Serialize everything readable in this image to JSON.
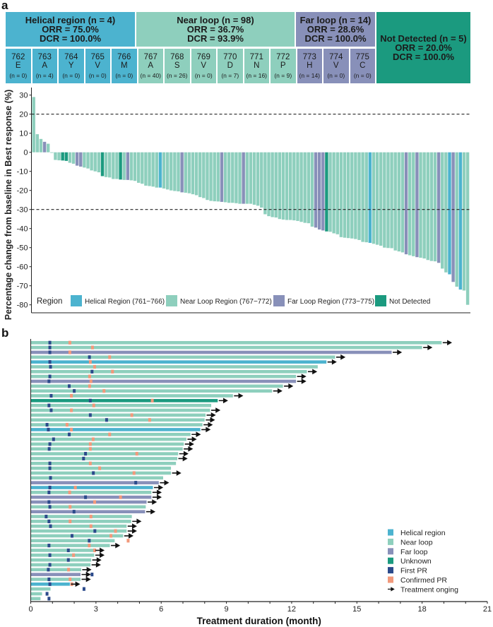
{
  "panel_labels": {
    "a": "a",
    "b": "b"
  },
  "colors": {
    "helical": "#4cb3cf",
    "near": "#8ecfbd",
    "far": "#8890b9",
    "not_detected": "#1b9a7f",
    "first_pr": "#2b4a8b",
    "confirmed_pr": "#f1997b",
    "arrow": "#111111"
  },
  "header": {
    "groups": [
      {
        "title": "Helical region (n = 4)",
        "orr": "ORR =  75.0%",
        "dcr": "DCR =  100.0%",
        "region": "helical"
      },
      {
        "title": "Near loop (n = 98)",
        "orr": "ORR =  36.7%",
        "dcr": "DCR =  93.9%",
        "region": "near"
      },
      {
        "title": "Far loop (n = 14)",
        "orr": "ORR = 28.6%",
        "dcr": "DCR = 100.0%",
        "region": "far"
      },
      {
        "title": "Not Detected (n = 5)",
        "orr": "ORR = 20.0%",
        "dcr": "DCR = 100.0%",
        "region": "not_detected"
      }
    ],
    "residues": [
      {
        "pos": "762",
        "aa": "E",
        "n": "(n = 0)",
        "region": "helical"
      },
      {
        "pos": "763",
        "aa": "A",
        "n": "(n = 4)",
        "region": "helical"
      },
      {
        "pos": "764",
        "aa": "Y",
        "n": "(n = 0)",
        "region": "helical"
      },
      {
        "pos": "765",
        "aa": "V",
        "n": "(n = 0)",
        "region": "helical"
      },
      {
        "pos": "766",
        "aa": "M",
        "n": "(n = 0)",
        "region": "helical"
      },
      {
        "pos": "767",
        "aa": "A",
        "n": "(n = 40)",
        "region": "near"
      },
      {
        "pos": "768",
        "aa": "S",
        "n": "(n = 26)",
        "region": "near"
      },
      {
        "pos": "769",
        "aa": "V",
        "n": "(n = 0)",
        "region": "near"
      },
      {
        "pos": "770",
        "aa": "D",
        "n": "(n = 7)",
        "region": "near"
      },
      {
        "pos": "771",
        "aa": "N",
        "n": "(n = 16)",
        "region": "near"
      },
      {
        "pos": "772",
        "aa": "P",
        "n": "(n = 9)",
        "region": "near"
      },
      {
        "pos": "773",
        "aa": "H",
        "n": "(n = 14)",
        "region": "far"
      },
      {
        "pos": "774",
        "aa": "V",
        "n": "(n = 0)",
        "region": "far"
      },
      {
        "pos": "775",
        "aa": "C",
        "n": "(n = 0)",
        "region": "far"
      }
    ]
  },
  "chart_data": [
    {
      "type": "bar",
      "subtype": "waterfall",
      "ylabel": "Percentage change from baseline in Best response (%)",
      "ylim": [
        -85,
        32
      ],
      "yticks": [
        30,
        20,
        10,
        0,
        -10,
        -20,
        -30,
        -40,
        -50,
        -60,
        -70,
        -80
      ],
      "reference_lines": [
        20,
        -30
      ],
      "legend": {
        "title": "Region",
        "placement": "bottom-left",
        "entries": [
          {
            "label": "Helical Region (761−766)",
            "region": "helical"
          },
          {
            "label": "Near Loop Region (767−772)",
            "region": "near"
          },
          {
            "label": "Far Loop Region (773−775)",
            "region": "far"
          },
          {
            "label": "Not Detected",
            "region": "not_detected"
          }
        ]
      },
      "values": [
        29,
        9.5,
        7,
        5.5,
        4.5,
        -0.3,
        -4,
        -4.2,
        -4.3,
        -4.5,
        -5.5,
        -6,
        -7,
        -7.5,
        -8,
        -8.5,
        -9.5,
        -10,
        -10.5,
        -12.5,
        -13,
        -13.2,
        -14,
        -14,
        -14.3,
        -14.5,
        -14.5,
        -14.7,
        -15,
        -16,
        -16.5,
        -17.5,
        -17.7,
        -18,
        -18.5,
        -18.5,
        -19,
        -19.5,
        -20,
        -20.3,
        -20.5,
        -21,
        -21.2,
        -21.5,
        -22,
        -22.5,
        -23.5,
        -24,
        -25,
        -25.5,
        -25.7,
        -25.8,
        -26,
        -26.2,
        -26.5,
        -26.5,
        -26.7,
        -27,
        -27,
        -27,
        -27,
        -27.5,
        -28,
        -29,
        -32.5,
        -33.5,
        -34,
        -34.2,
        -35,
        -35.3,
        -35.5,
        -35.5,
        -35.7,
        -36,
        -36.5,
        -37,
        -37.2,
        -39,
        -39.5,
        -40.5,
        -41,
        -41.5,
        -41.7,
        -42.5,
        -43,
        -44.5,
        -44.8,
        -45,
        -45.2,
        -45.5,
        -46,
        -47,
        -47.2,
        -47.5,
        -48,
        -48.5,
        -49,
        -50,
        -50.2,
        -50.3,
        -51.5,
        -52,
        -52.5,
        -53.5,
        -54,
        -54.5,
        -55,
        -55.3,
        -55.7,
        -56.5,
        -57,
        -57.2,
        -58,
        -61,
        -63,
        -64,
        -68,
        -70.5,
        -72,
        -72.5,
        -80
      ],
      "regions": [
        "N",
        "N",
        "N",
        "F",
        "N",
        "N",
        "N",
        "N",
        "ND",
        "ND",
        "N",
        "N",
        "F",
        "F",
        "N",
        "N",
        "N",
        "N",
        "N",
        "ND",
        "N",
        "N",
        "N",
        "N",
        "ND",
        "N",
        "F",
        "N",
        "N",
        "N",
        "N",
        "N",
        "N",
        "N",
        "N",
        "H",
        "N",
        "N",
        "N",
        "N",
        "N",
        "F",
        "N",
        "N",
        "N",
        "N",
        "N",
        "N",
        "N",
        "N",
        "N",
        "N",
        "F",
        "N",
        "N",
        "N",
        "N",
        "N",
        "F",
        "N",
        "N",
        "N",
        "N",
        "N",
        "N",
        "N",
        "N",
        "N",
        "N",
        "N",
        "N",
        "N",
        "N",
        "N",
        "N",
        "N",
        "N",
        "N",
        "F",
        "F",
        "F",
        "ND",
        "N",
        "N",
        "N",
        "N",
        "N",
        "N",
        "N",
        "N",
        "N",
        "N",
        "N",
        "H",
        "N",
        "N",
        "N",
        "N",
        "N",
        "N",
        "N",
        "N",
        "N",
        "F",
        "N",
        "N",
        "F",
        "N",
        "N",
        "N",
        "N",
        "N",
        "F",
        "N",
        "N",
        "H",
        "F",
        "N",
        "H",
        "N",
        "N",
        "N"
      ]
    },
    {
      "type": "bar",
      "subtype": "swimmer",
      "xlabel": "Treatment duration (month)",
      "xlim": [
        0,
        21
      ],
      "xticks": [
        0,
        3,
        6,
        9,
        12,
        15,
        18,
        21
      ],
      "legend": {
        "placement": "bottom-right",
        "entries": [
          {
            "label": "Helical region",
            "kind": "helical"
          },
          {
            "label": "Near loop",
            "kind": "near"
          },
          {
            "label": "Far loop",
            "kind": "far"
          },
          {
            "label": "Unknown",
            "kind": "not_detected"
          },
          {
            "label": "First PR",
            "kind": "first_pr"
          },
          {
            "label": "Confirmed PR",
            "kind": "confirmed_pr"
          },
          {
            "label": "Treatment onging",
            "kind": "arrow"
          }
        ]
      },
      "columns": [
        "duration_months",
        "region",
        "first_pr_month",
        "confirmed_pr_month",
        "ongoing"
      ],
      "rows": [
        [
          18.9,
          "N",
          0.88,
          1.8,
          true
        ],
        [
          18.0,
          "N",
          0.88,
          2.84,
          true
        ],
        [
          16.6,
          "F",
          0.88,
          1.8,
          true
        ],
        [
          14.0,
          "N",
          2.7,
          3.63,
          true
        ],
        [
          13.6,
          "H",
          0.88,
          2.74,
          true
        ],
        [
          13.2,
          "N",
          0.91,
          2.94,
          false
        ],
        [
          12.7,
          "N",
          2.82,
          3.76,
          true
        ],
        [
          12.2,
          "N",
          0.88,
          2.71,
          true
        ],
        [
          12.2,
          "F",
          0.84,
          2.77,
          true
        ],
        [
          11.6,
          "N",
          1.77,
          2.71,
          true
        ],
        [
          11.1,
          "N",
          2.0,
          3.37,
          true
        ],
        [
          9.3,
          "N",
          0.94,
          1.87,
          true
        ],
        [
          8.6,
          "ND",
          2.74,
          5.59,
          true
        ],
        [
          8.3,
          "N",
          0.84,
          2.9,
          false
        ],
        [
          8.25,
          "N",
          0.94,
          1.87,
          true
        ],
        [
          8.04,
          "N",
          2.74,
          4.65,
          true
        ],
        [
          8.0,
          "N",
          3.49,
          5.47,
          true
        ],
        [
          7.9,
          "N",
          0.75,
          1.67,
          true
        ],
        [
          7.8,
          "H",
          0.81,
          1.87,
          true
        ],
        [
          7.35,
          "N",
          1.77,
          3.63,
          true
        ],
        [
          7.16,
          "N",
          1.05,
          2.87,
          true
        ],
        [
          7.04,
          "N",
          0.88,
          2.74,
          true
        ],
        [
          6.99,
          "N",
          0.85,
          2.74,
          true
        ],
        [
          6.78,
          "N",
          2.52,
          4.88,
          true
        ],
        [
          6.74,
          "N",
          2.43,
          null,
          true
        ],
        [
          6.68,
          "N",
          0.88,
          2.74,
          false
        ],
        [
          6.45,
          "N",
          0.88,
          3.17,
          false
        ],
        [
          6.45,
          "N",
          2.88,
          4.75,
          true
        ],
        [
          6.09,
          "N",
          0.91,
          null,
          false
        ],
        [
          5.89,
          "F",
          4.83,
          null,
          true
        ],
        [
          5.62,
          "H",
          0.88,
          2.05,
          true
        ],
        [
          5.55,
          "N",
          0.84,
          1.79,
          true
        ],
        [
          5.55,
          "F",
          2.52,
          4.13,
          true
        ],
        [
          5.33,
          "F",
          0.84,
          2.94,
          true
        ],
        [
          5.29,
          "N",
          0.88,
          1.81,
          false
        ],
        [
          5.26,
          "F",
          1.99,
          null,
          true
        ],
        [
          4.65,
          "N",
          0.71,
          2.77,
          false
        ],
        [
          4.62,
          "N",
          0.84,
          1.81,
          true
        ],
        [
          4.41,
          "N",
          0.91,
          2.77,
          true
        ],
        [
          4.41,
          "N",
          2.95,
          3.9,
          true
        ],
        [
          4.25,
          "N",
          1.9,
          3.69,
          true
        ],
        [
          3.86,
          "N",
          2.69,
          4.48,
          false
        ],
        [
          3.64,
          "N",
          0.84,
          2.69,
          true
        ],
        [
          2.92,
          "N",
          1.73,
          2.94,
          true
        ],
        [
          2.92,
          "N",
          0.88,
          1.97,
          true
        ],
        [
          2.78,
          "N",
          1.73,
          null,
          true
        ],
        [
          2.75,
          "N",
          0.88,
          null,
          true
        ],
        [
          2.32,
          "N",
          0.81,
          1.74,
          true
        ],
        [
          2.29,
          "F",
          2.82,
          null,
          true
        ],
        [
          2.29,
          "N",
          0.84,
          1.81,
          true
        ],
        [
          1.8,
          "H",
          0.88,
          1.89,
          true
        ],
        [
          0.91,
          "N",
          2.45,
          null,
          false
        ],
        [
          0.52,
          "N",
          0.75,
          null,
          false
        ],
        [
          0.45,
          "N",
          0.84,
          null,
          false
        ]
      ]
    }
  ]
}
